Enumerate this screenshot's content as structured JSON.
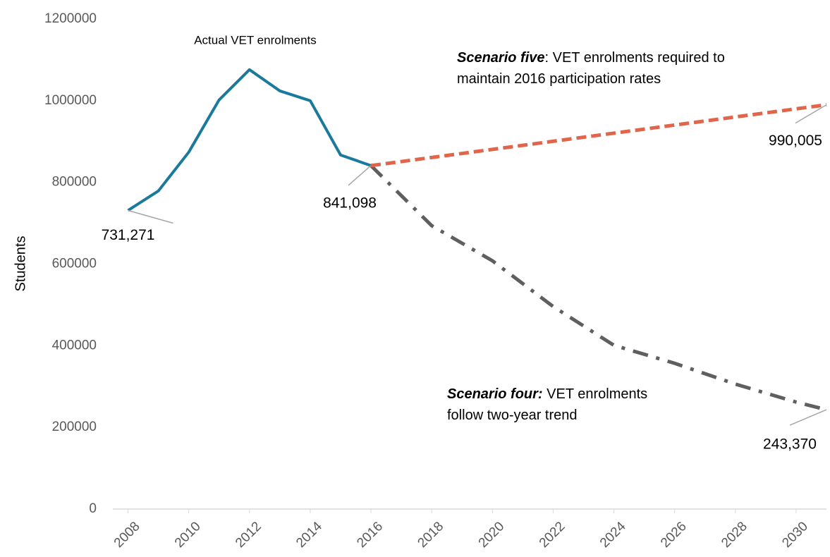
{
  "chart_data": {
    "type": "line",
    "y_label": "Students",
    "xlim": [
      2007.5,
      2031
    ],
    "xticks": [
      2008,
      2010,
      2012,
      2014,
      2016,
      2018,
      2020,
      2022,
      2024,
      2026,
      2028,
      2030
    ],
    "ylim": [
      0,
      1200000
    ],
    "yticks": [
      0,
      200000,
      400000,
      600000,
      800000,
      1000000,
      1200000
    ],
    "series": [
      {
        "name": "Actual VET enrolments",
        "color": "#1a7a9c",
        "style": "solid",
        "x": [
          2008,
          2009,
          2010,
          2011,
          2012,
          2013,
          2014,
          2015,
          2016
        ],
        "values": [
          731271,
          779000,
          874000,
          1002000,
          1076000,
          1024000,
          1000000,
          867000,
          841098
        ],
        "value_labels": [
          "731,271",
          null,
          null,
          null,
          null,
          null,
          null,
          null,
          "841,098"
        ]
      },
      {
        "color": "#e0654a",
        "style": "dashed",
        "x": [
          2016,
          2031
        ],
        "values": [
          841098,
          990005
        ],
        "value_labels": [
          null,
          "990,005"
        ]
      },
      {
        "color": "#5f5f5f",
        "style": "dashdot",
        "x": [
          2016,
          2018,
          2020,
          2022,
          2024,
          2026,
          2028,
          2030,
          2031
        ],
        "values": [
          841098,
          694000,
          608000,
          496000,
          401000,
          357000,
          306000,
          262000,
          243370
        ],
        "value_labels": [
          null,
          null,
          null,
          null,
          null,
          null,
          null,
          null,
          "243,370"
        ]
      }
    ],
    "annotations": [
      {
        "lines": [
          [
            {
              "text": "Scenario five",
              "emphasis": true
            },
            {
              "text": ": VET enrolments required to"
            }
          ],
          [
            {
              "text": "maintain 2016 participation rates"
            }
          ]
        ]
      },
      {
        "lines": [
          [
            {
              "text": "Scenario four:",
              "emphasis": true
            },
            {
              "text": " VET enrolments"
            }
          ],
          [
            {
              "text": "follow two-year trend"
            }
          ]
        ]
      }
    ]
  }
}
